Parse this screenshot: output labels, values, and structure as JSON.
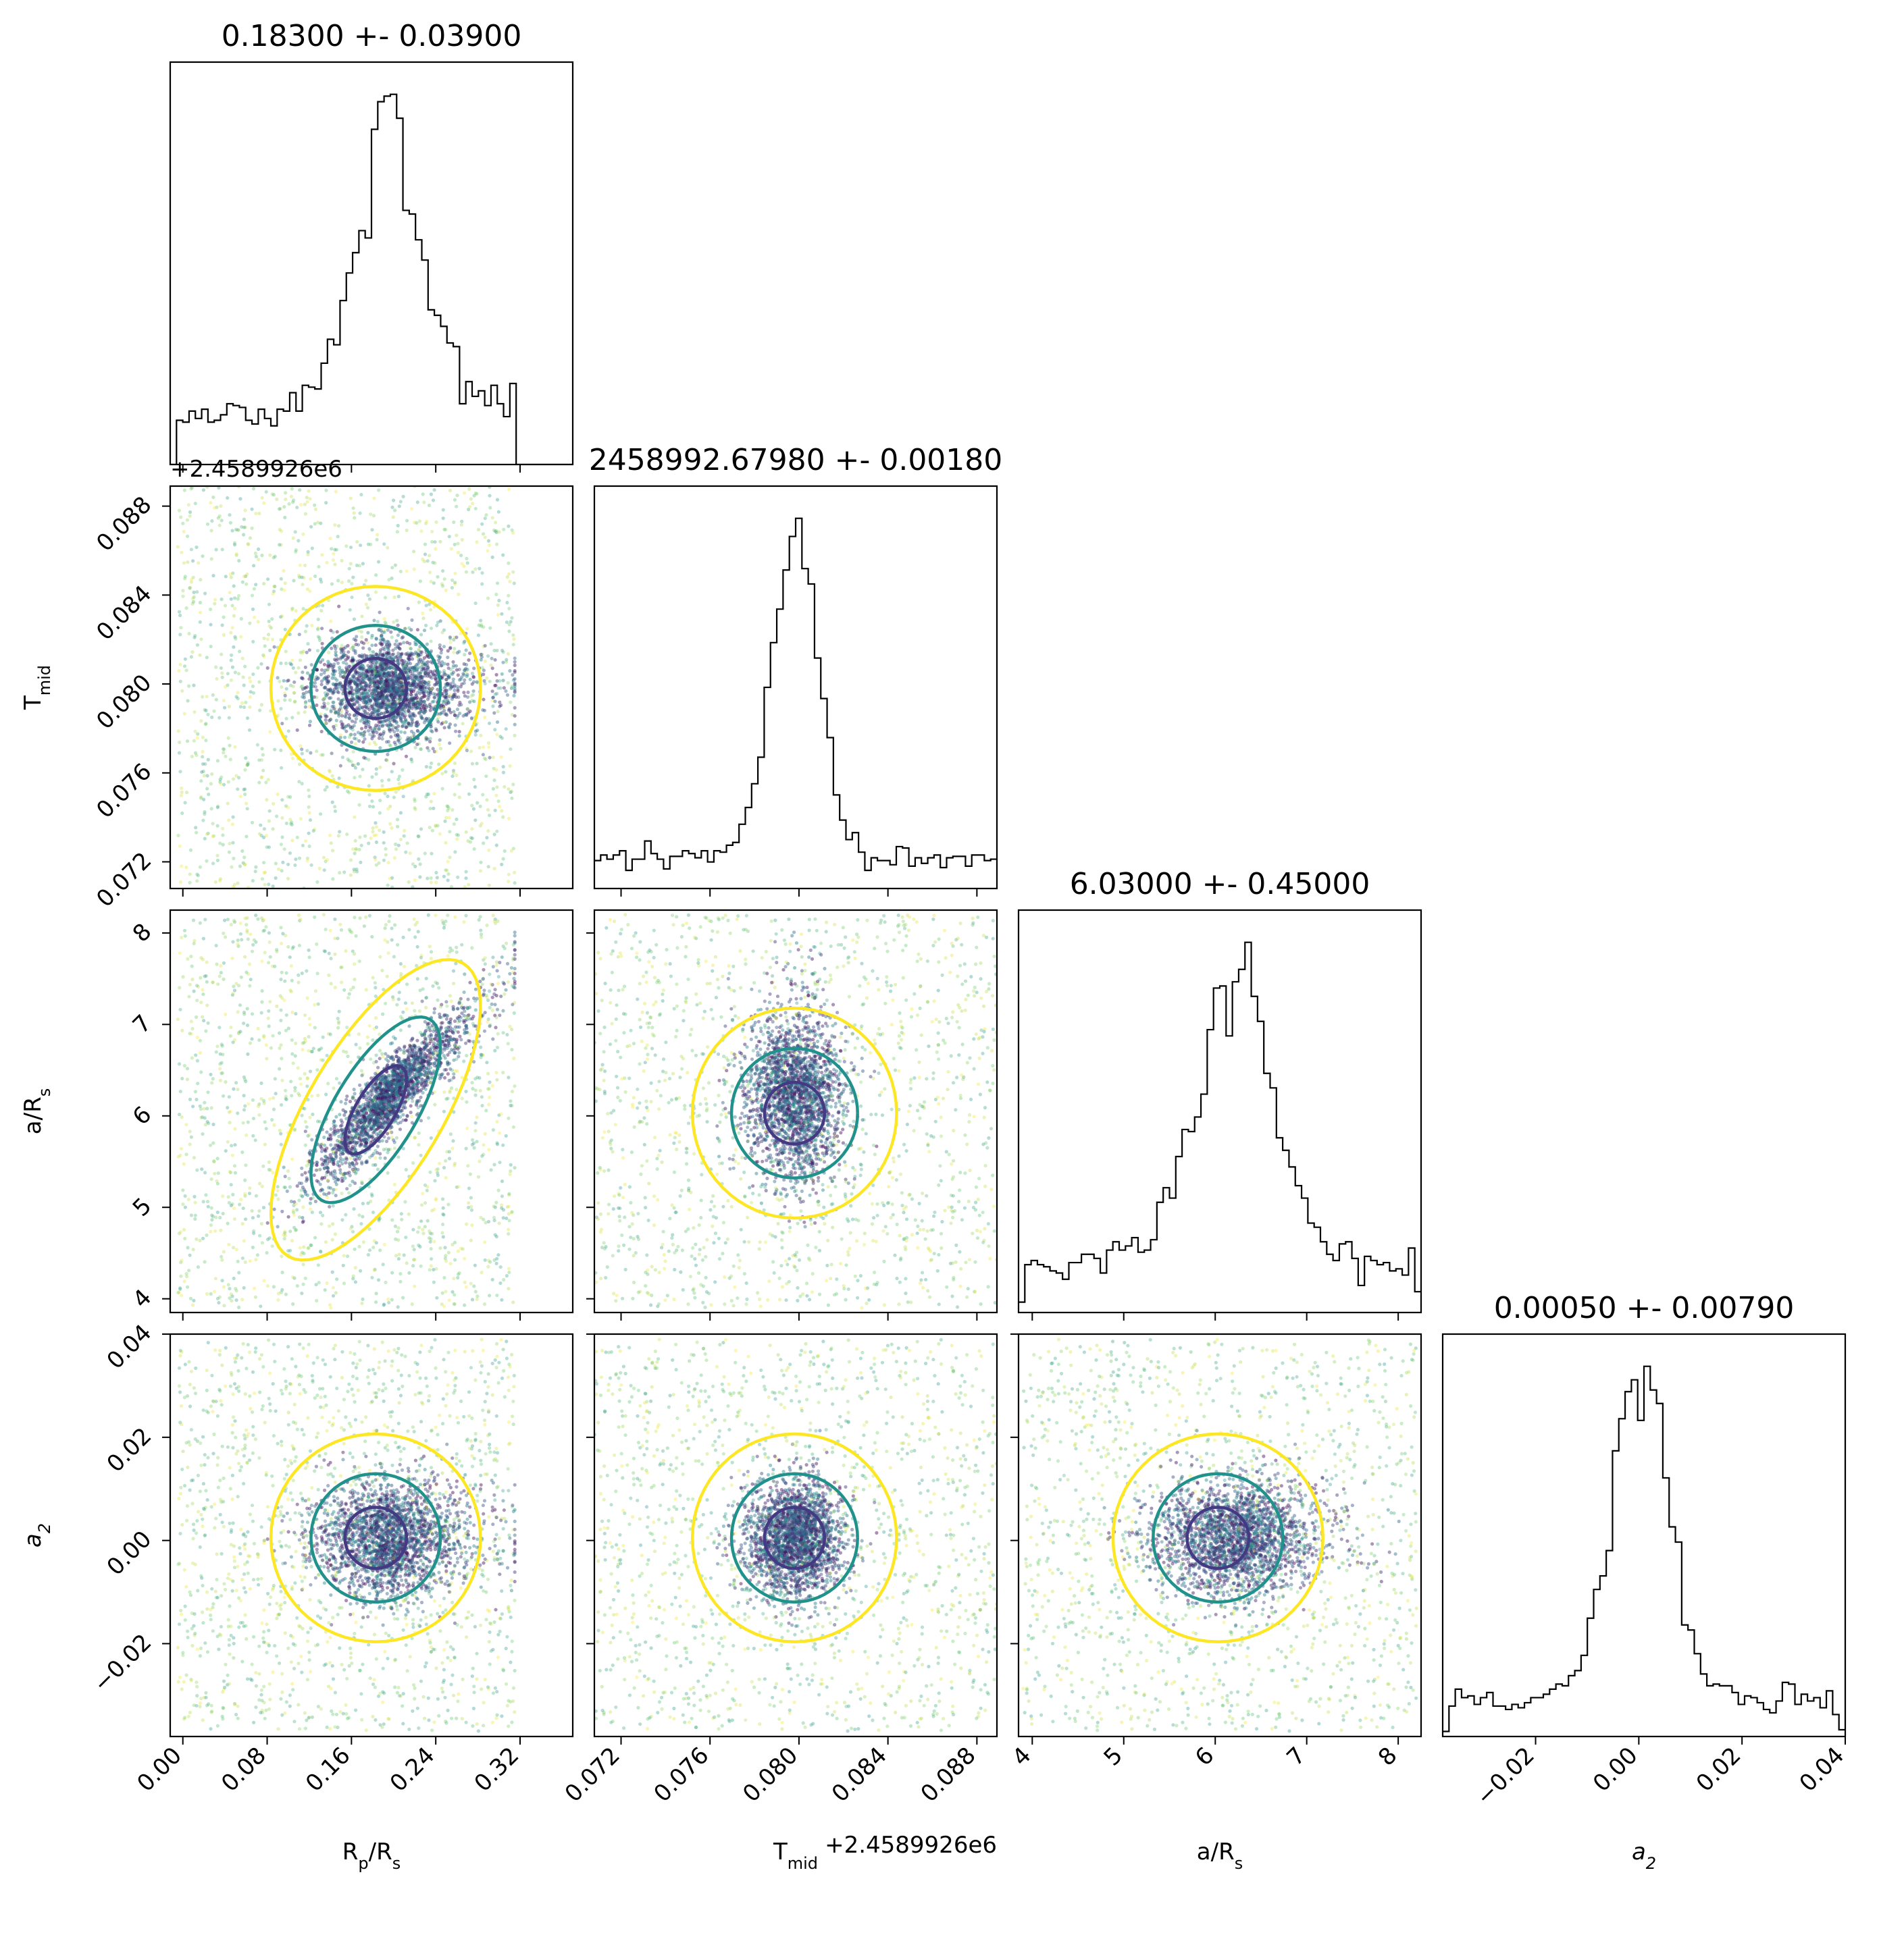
{
  "chart_data": {
    "type": "corner",
    "parameters": [
      {
        "key": "rp",
        "label": "R_p/R_s",
        "label_main": "R",
        "label_sub": "p",
        "label_tail": "/R",
        "label_tail_sub": "s",
        "title": "0.18300 +- 0.03900",
        "mean": 0.183,
        "sigma": 0.039,
        "range": [
          -0.012,
          0.37
        ],
        "ticks": [
          0.0,
          0.08,
          0.16,
          0.24,
          0.32
        ],
        "tick_labels": [
          "0.00",
          "0.08",
          "0.16",
          "0.24",
          "0.32"
        ]
      },
      {
        "key": "tmid",
        "label": "T_mid",
        "label_main": "T",
        "label_sub": "mid",
        "label_tail": "",
        "label_tail_sub": "",
        "offset": "+2.4589926e6",
        "title": "2458992.67980 +- 0.00180",
        "mean": 0.0798,
        "sigma": 0.0018,
        "range": [
          0.0708,
          0.0889
        ],
        "ticks": [
          0.072,
          0.076,
          0.08,
          0.084,
          0.088
        ],
        "tick_labels": [
          "0.072",
          "0.076",
          "0.080",
          "0.084",
          "0.088"
        ]
      },
      {
        "key": "ars",
        "label": "a/R_s",
        "label_main": "a/R",
        "label_sub": "s",
        "label_tail": "",
        "label_tail_sub": "",
        "title": "6.03000 +- 0.45000",
        "mean": 6.03,
        "sigma": 0.45,
        "range": [
          3.85,
          8.25
        ],
        "ticks": [
          4,
          5,
          6,
          7,
          8
        ],
        "tick_labels": [
          "4",
          "5",
          "6",
          "7",
          "8"
        ]
      },
      {
        "key": "a2",
        "label": "a_2",
        "label_main": "a",
        "label_sub": "2",
        "label_tail": "",
        "label_tail_sub": "",
        "italic": true,
        "title": "0.00050 +- 0.00790",
        "mean": 0.0005,
        "sigma": 0.0079,
        "range": [
          -0.038,
          0.04
        ],
        "ticks": [
          -0.02,
          0.0,
          0.02,
          0.04
        ],
        "tick_labels": [
          "−0.02",
          "0.00",
          "0.02",
          "0.04"
        ]
      }
    ],
    "contour_levels": [
      "1-sigma",
      "2-sigma",
      "3-sigma"
    ],
    "contour_colors": [
      "#443983",
      "#21918c",
      "#fde725"
    ],
    "colormap": "viridis",
    "histograms": "step",
    "samples": "scatter points colored by likelihood"
  }
}
